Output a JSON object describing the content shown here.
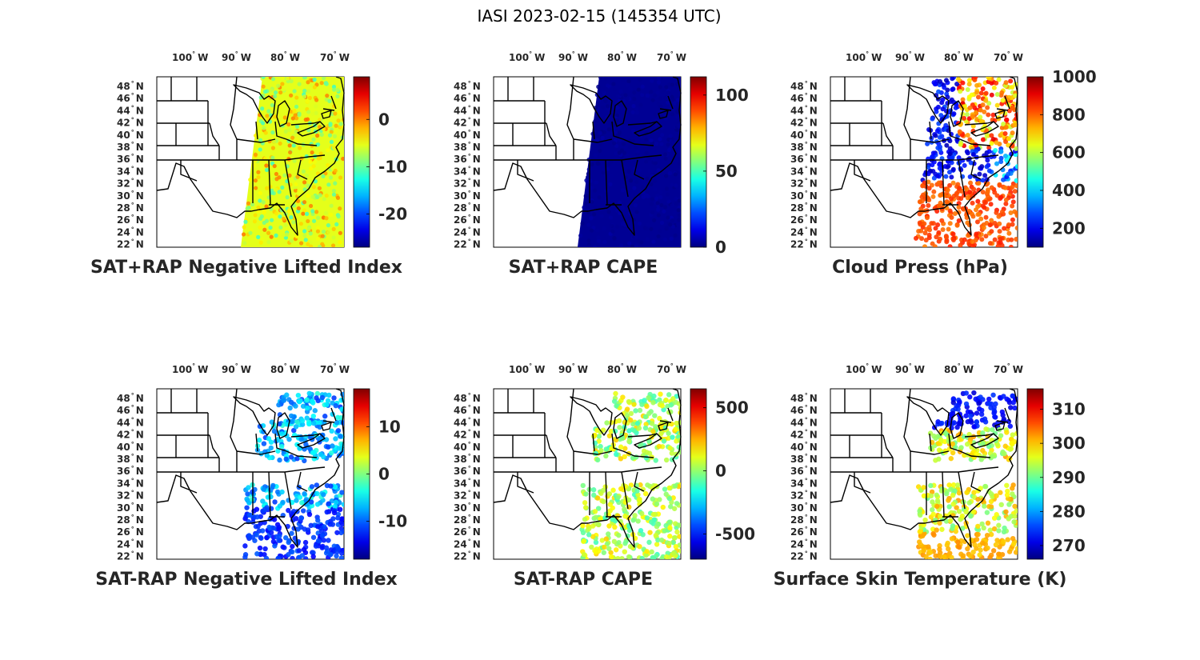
{
  "figure_title": "IASI 2023-02-15 (145354 UTC)",
  "lon_ticks": [
    {
      "value": "100",
      "unit": "W"
    },
    {
      "value": "90",
      "unit": "W"
    },
    {
      "value": "80",
      "unit": "W"
    },
    {
      "value": "70",
      "unit": "W"
    }
  ],
  "lat_ticks": [
    {
      "value": "48",
      "unit": "N"
    },
    {
      "value": "46",
      "unit": "N"
    },
    {
      "value": "44",
      "unit": "N"
    },
    {
      "value": "42",
      "unit": "N"
    },
    {
      "value": "40",
      "unit": "N"
    },
    {
      "value": "38",
      "unit": "N"
    },
    {
      "value": "36",
      "unit": "N"
    },
    {
      "value": "34",
      "unit": "N"
    },
    {
      "value": "32",
      "unit": "N"
    },
    {
      "value": "30",
      "unit": "N"
    },
    {
      "value": "28",
      "unit": "N"
    },
    {
      "value": "26",
      "unit": "N"
    },
    {
      "value": "24",
      "unit": "N"
    },
    {
      "value": "22",
      "unit": "N"
    }
  ],
  "colormap": "jet",
  "panels": [
    {
      "title": "SAT+RAP Negative Lifted Index",
      "clim": [
        -27,
        9
      ],
      "cbar_ticks": [
        "0",
        "-10",
        "-20"
      ],
      "cbar_values": [
        0,
        -10,
        -20
      ],
      "coverage": "swath",
      "dominant_level": 0.6
    },
    {
      "title": "SAT+RAP CAPE",
      "clim": [
        0,
        112
      ],
      "cbar_ticks": [
        "100",
        "50",
        "0"
      ],
      "cbar_values": [
        100,
        50,
        0
      ],
      "coverage": "swath",
      "dominant_level": 0.02
    },
    {
      "title": "Cloud Press (hPa)",
      "clim": [
        100,
        1000
      ],
      "cbar_ticks": [
        "1000",
        "800",
        "600",
        "400",
        "200"
      ],
      "cbar_values": [
        1000,
        800,
        600,
        400,
        200
      ],
      "coverage": "cloudy",
      "dominant_level": 0.8
    },
    {
      "title": "SAT-RAP Negative Lifted Index",
      "clim": [
        -18,
        18
      ],
      "cbar_ticks": [
        "10",
        "0",
        "-10"
      ],
      "cbar_values": [
        10,
        0,
        -10
      ],
      "coverage": "scattered",
      "dominant_level": 0.3
    },
    {
      "title": "SAT-RAP CAPE",
      "clim": [
        -700,
        650
      ],
      "cbar_ticks": [
        "500",
        "0",
        "-500"
      ],
      "cbar_values": [
        500,
        0,
        -500
      ],
      "coverage": "scattered",
      "dominant_level": 0.55
    },
    {
      "title": "Surface Skin Temperature (K)",
      "clim": [
        266,
        316
      ],
      "cbar_ticks": [
        "310",
        "300",
        "290",
        "280",
        "270"
      ],
      "cbar_values": [
        310,
        300,
        290,
        280,
        270
      ],
      "coverage": "scattered",
      "dominant_level": 0.6
    }
  ]
}
